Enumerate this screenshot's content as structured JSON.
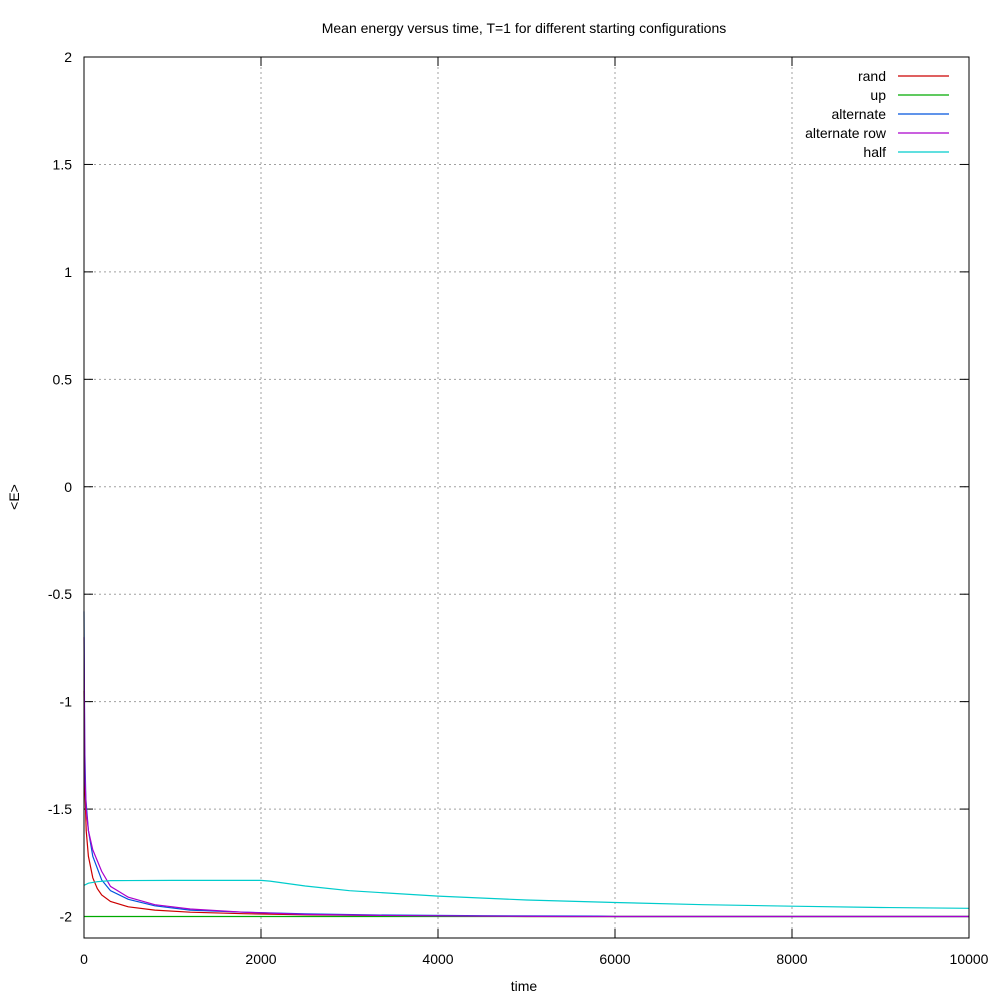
{
  "chart_data": {
    "type": "line",
    "title": "Mean energy versus time, T=1 for different starting configurations",
    "xlabel": "time",
    "ylabel": "<E>",
    "xlim": [
      0,
      10000
    ],
    "ylim": [
      -2.1,
      2
    ],
    "grid": true,
    "legend_position": "top-right",
    "x_ticks": [
      0,
      2000,
      4000,
      6000,
      8000,
      10000
    ],
    "x_tick_labels": [
      "0",
      "2000",
      "4000",
      "6000",
      "8000",
      "10000"
    ],
    "y_ticks": [
      -2,
      -1.5,
      -1,
      -0.5,
      0,
      0.5,
      1,
      1.5,
      2
    ],
    "y_tick_labels": [
      "-2",
      "-1.5",
      "-1",
      "-0.5",
      "0",
      "0.5",
      "1",
      "1.5",
      "2"
    ],
    "series": [
      {
        "name": "rand",
        "color": "#cc0000",
        "points": [
          [
            0,
            -0.95
          ],
          [
            10,
            -1.4
          ],
          [
            25,
            -1.6
          ],
          [
            50,
            -1.72
          ],
          [
            100,
            -1.82
          ],
          [
            150,
            -1.87
          ],
          [
            200,
            -1.9
          ],
          [
            300,
            -1.93
          ],
          [
            500,
            -1.955
          ],
          [
            800,
            -1.97
          ],
          [
            1200,
            -1.98
          ],
          [
            1800,
            -1.987
          ],
          [
            2500,
            -1.992
          ],
          [
            3500,
            -1.996
          ],
          [
            4400,
            -1.998
          ],
          [
            5000,
            -2.0
          ],
          [
            10000,
            -2.0
          ]
        ]
      },
      {
        "name": "up",
        "color": "#00aa00",
        "points": [
          [
            0,
            -2.0
          ],
          [
            10000,
            -2.0
          ]
        ]
      },
      {
        "name": "alternate",
        "color": "#0055dd",
        "points": [
          [
            0,
            -0.58
          ],
          [
            8,
            -1.2
          ],
          [
            20,
            -1.45
          ],
          [
            50,
            -1.6
          ],
          [
            100,
            -1.72
          ],
          [
            200,
            -1.83
          ],
          [
            300,
            -1.88
          ],
          [
            500,
            -1.92
          ],
          [
            800,
            -1.95
          ],
          [
            1200,
            -1.97
          ],
          [
            1800,
            -1.98
          ],
          [
            2500,
            -1.988
          ],
          [
            3300,
            -1.993
          ],
          [
            4500,
            -1.996
          ],
          [
            5800,
            -1.998
          ],
          [
            6000,
            -2.0
          ],
          [
            10000,
            -2.0
          ]
        ]
      },
      {
        "name": "alternate row",
        "color": "#aa00cc",
        "points": [
          [
            0,
            -0.7
          ],
          [
            10,
            -1.35
          ],
          [
            25,
            -1.5
          ],
          [
            50,
            -1.6
          ],
          [
            100,
            -1.69
          ],
          [
            200,
            -1.79
          ],
          [
            300,
            -1.86
          ],
          [
            500,
            -1.91
          ],
          [
            800,
            -1.945
          ],
          [
            1200,
            -1.965
          ],
          [
            1800,
            -1.98
          ],
          [
            2500,
            -1.99
          ],
          [
            3300,
            -1.995
          ],
          [
            4500,
            -1.998
          ],
          [
            5500,
            -2.0
          ],
          [
            10000,
            -2.0
          ]
        ]
      },
      {
        "name": "half",
        "color": "#00cccc",
        "points": [
          [
            0,
            -1.855
          ],
          [
            50,
            -1.845
          ],
          [
            150,
            -1.838
          ],
          [
            300,
            -1.833
          ],
          [
            1000,
            -1.832
          ],
          [
            2000,
            -1.832
          ],
          [
            2100,
            -1.835
          ],
          [
            2500,
            -1.858
          ],
          [
            3000,
            -1.88
          ],
          [
            4000,
            -1.905
          ],
          [
            5000,
            -1.923
          ],
          [
            6000,
            -1.935
          ],
          [
            7000,
            -1.945
          ],
          [
            8000,
            -1.952
          ],
          [
            9000,
            -1.958
          ],
          [
            10000,
            -1.962
          ]
        ]
      }
    ]
  }
}
